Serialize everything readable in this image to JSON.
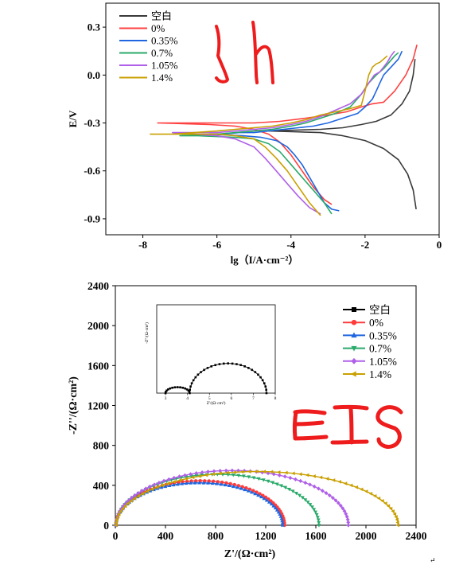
{
  "chart_data": [
    {
      "type": "line",
      "name": "tafel",
      "xlabel": "lg（I/A·cm⁻²）",
      "ylabel": "E/V",
      "xlim": [
        -9,
        0
      ],
      "ylim": [
        -1.0,
        0.45
      ],
      "xticks": [
        "-8",
        "-6",
        "-4",
        "-2",
        "0"
      ],
      "yticks": [
        "0.3",
        "0.0",
        "-0.3",
        "-0.6",
        "-0.9"
      ],
      "legend_position": "top-left",
      "annotation": "3h",
      "series": [
        {
          "name": "空白",
          "color": "#3a3a3a",
          "x": [
            -0.65,
            -0.7,
            -0.8,
            -1.0,
            -1.3,
            -1.7,
            -2.1,
            -2.6,
            -3.2,
            -3.9,
            -4.6,
            -3.9,
            -3.2,
            -2.6,
            -2.0,
            -1.5,
            -1.1,
            -0.85,
            -0.7,
            -0.62
          ],
          "y": [
            0.1,
            0.0,
            -0.1,
            -0.18,
            -0.25,
            -0.29,
            -0.31,
            -0.33,
            -0.34,
            -0.345,
            -0.35,
            -0.355,
            -0.36,
            -0.38,
            -0.41,
            -0.46,
            -0.53,
            -0.62,
            -0.72,
            -0.84
          ]
        },
        {
          "name": "0%",
          "color": "#ff4040",
          "x": [
            -0.6,
            -0.7,
            -0.9,
            -1.2,
            -1.5,
            -1.8,
            -2.1,
            -2.5,
            -3.0,
            -3.6,
            -4.3,
            -5.0,
            -5.6,
            -6.2,
            -6.9,
            -7.6,
            -6.9,
            -6.2,
            -5.5,
            -5.0,
            -4.6,
            -4.3,
            -4.0,
            -3.7,
            -3.4,
            -3.1,
            -2.9
          ],
          "y": [
            0.19,
            0.1,
            0.0,
            -0.1,
            -0.17,
            -0.18,
            -0.2,
            -0.23,
            -0.25,
            -0.27,
            -0.29,
            -0.3,
            -0.3,
            -0.3,
            -0.3,
            -0.3,
            -0.305,
            -0.31,
            -0.32,
            -0.34,
            -0.37,
            -0.42,
            -0.5,
            -0.6,
            -0.7,
            -0.78,
            -0.81
          ]
        },
        {
          "name": "0.35%",
          "color": "#1f66e0",
          "x": [
            -1.0,
            -1.1,
            -1.3,
            -1.5,
            -1.6,
            -1.7,
            -1.8,
            -2.0,
            -2.2,
            -2.6,
            -3.0,
            -3.4,
            -3.8,
            -4.2,
            -4.6,
            -5.0,
            -5.4,
            -5.8,
            -6.2,
            -5.8,
            -5.3,
            -4.8,
            -4.4,
            -4.1,
            -3.9,
            -3.7,
            -3.5,
            -3.3,
            -3.1,
            -2.9,
            -2.7
          ],
          "y": [
            0.15,
            0.1,
            0.05,
            0.0,
            -0.05,
            -0.1,
            -0.15,
            -0.2,
            -0.24,
            -0.27,
            -0.3,
            -0.32,
            -0.33,
            -0.34,
            -0.35,
            -0.36,
            -0.36,
            -0.37,
            -0.37,
            -0.375,
            -0.38,
            -0.39,
            -0.41,
            -0.45,
            -0.5,
            -0.56,
            -0.64,
            -0.72,
            -0.8,
            -0.84,
            -0.85
          ]
        },
        {
          "name": "0.7%",
          "color": "#2aaa6a",
          "x": [
            -1.1,
            -1.2,
            -1.35,
            -1.5,
            -1.7,
            -1.9,
            -2.1,
            -2.4,
            -2.8,
            -3.2,
            -3.6,
            -4.0,
            -4.5,
            -5.0,
            -5.5,
            -6.0,
            -6.5,
            -7.0,
            -6.5,
            -6.0,
            -5.5,
            -5.0,
            -4.6,
            -4.3,
            -4.0,
            -3.7,
            -3.4,
            -3.1,
            -2.9
          ],
          "y": [
            0.14,
            0.12,
            0.08,
            0.04,
            0.0,
            -0.05,
            -0.12,
            -0.2,
            -0.24,
            -0.27,
            -0.3,
            -0.32,
            -0.34,
            -0.35,
            -0.36,
            -0.37,
            -0.375,
            -0.38,
            -0.38,
            -0.385,
            -0.39,
            -0.4,
            -0.43,
            -0.48,
            -0.56,
            -0.64,
            -0.72,
            -0.8,
            -0.87
          ]
        },
        {
          "name": "1.05%",
          "color": "#b060e8",
          "x": [
            -1.2,
            -1.3,
            -1.4,
            -1.5,
            -1.6,
            -1.75,
            -1.9,
            -2.1,
            -2.4,
            -2.8,
            -3.2,
            -3.6,
            -4.0,
            -4.5,
            -5.0,
            -5.5,
            -6.0,
            -6.6,
            -7.2,
            -6.6,
            -6.0,
            -5.5,
            -5.0,
            -4.7,
            -4.4,
            -4.1,
            -3.8,
            -3.5,
            -3.2
          ],
          "y": [
            0.15,
            0.12,
            0.08,
            0.05,
            0.02,
            0.0,
            -0.05,
            -0.12,
            -0.18,
            -0.22,
            -0.26,
            -0.29,
            -0.31,
            -0.33,
            -0.34,
            -0.35,
            -0.36,
            -0.36,
            -0.36,
            -0.37,
            -0.38,
            -0.4,
            -0.45,
            -0.52,
            -0.6,
            -0.68,
            -0.76,
            -0.83,
            -0.87
          ]
        },
        {
          "name": "1.4%",
          "color": "#c9a000",
          "x": [
            -1.4,
            -1.5,
            -1.6,
            -1.7,
            -1.8,
            -1.9,
            -2.0,
            -2.1,
            -2.4,
            -2.8,
            -3.2,
            -3.6,
            -4.0,
            -4.5,
            -5.0,
            -5.5,
            -6.0,
            -6.6,
            -7.2,
            -7.8,
            -7.2,
            -6.6,
            -6.0,
            -5.5,
            -5.0,
            -4.7,
            -4.4,
            -4.1,
            -3.8,
            -3.5,
            -3.2
          ],
          "y": [
            0.12,
            0.1,
            0.08,
            0.07,
            0.05,
            0.0,
            -0.1,
            -0.19,
            -0.21,
            -0.23,
            -0.25,
            -0.28,
            -0.3,
            -0.32,
            -0.33,
            -0.34,
            -0.35,
            -0.36,
            -0.37,
            -0.37,
            -0.37,
            -0.37,
            -0.37,
            -0.38,
            -0.4,
            -0.45,
            -0.52,
            -0.6,
            -0.7,
            -0.8,
            -0.88
          ]
        }
      ]
    },
    {
      "type": "scatter",
      "name": "nyquist",
      "xlabel": "Z'/(Ω·cm²)",
      "ylabel": "-Z''/(Ω·cm²)",
      "xlim": [
        0,
        2400
      ],
      "ylim": [
        0,
        2400
      ],
      "xticks": [
        "0",
        "400",
        "800",
        "1200",
        "1600",
        "2000",
        "2400"
      ],
      "yticks": [
        "0",
        "400",
        "800",
        "1200",
        "1600",
        "2000",
        "2400"
      ],
      "legend_position": "top-right",
      "annotation": "EIS",
      "series": [
        {
          "name": "空白",
          "color": "#000000",
          "shape": "square",
          "x0": 0,
          "x1": 0,
          "r": 0,
          "h": 0
        },
        {
          "name": "0%",
          "color": "#ff3b3b",
          "shape": "circle",
          "x0": 5,
          "x1": 1350,
          "r": 672.5,
          "h": 445
        },
        {
          "name": "0.35%",
          "color": "#1f66e0",
          "shape": "triangle-up",
          "x0": 5,
          "x1": 1335,
          "r": 665,
          "h": 425
        },
        {
          "name": "0.7%",
          "color": "#2aaa6a",
          "shape": "triangle-down",
          "x0": 5,
          "x1": 1625,
          "r": 810,
          "h": 510
        },
        {
          "name": "1.05%",
          "color": "#b060e8",
          "shape": "diamond",
          "x0": 5,
          "x1": 1860,
          "r": 927.5,
          "h": 548
        },
        {
          "name": "1.4%",
          "color": "#c9a000",
          "shape": "triangle-left",
          "x0": 5,
          "x1": 2255,
          "r": 1125,
          "h": 538
        }
      ],
      "inset": {
        "xlabel": "Z'/(Ω·cm²)",
        "ylabel": "-Z''/(Ω·cm²)",
        "xlim": [
          2.6,
          8.0
        ],
        "ylim": [
          0,
          5.2
        ],
        "xticks": [
          "3",
          "4",
          "5",
          "6",
          "7",
          "8"
        ],
        "series": "空白",
        "small_arc": {
          "x0": 3.0,
          "x1": 4.1,
          "h": 0.35
        },
        "large_arc": {
          "x0": 4.1,
          "x1": 7.6,
          "h": 1.75
        }
      }
    }
  ],
  "corner_mark": "↵"
}
